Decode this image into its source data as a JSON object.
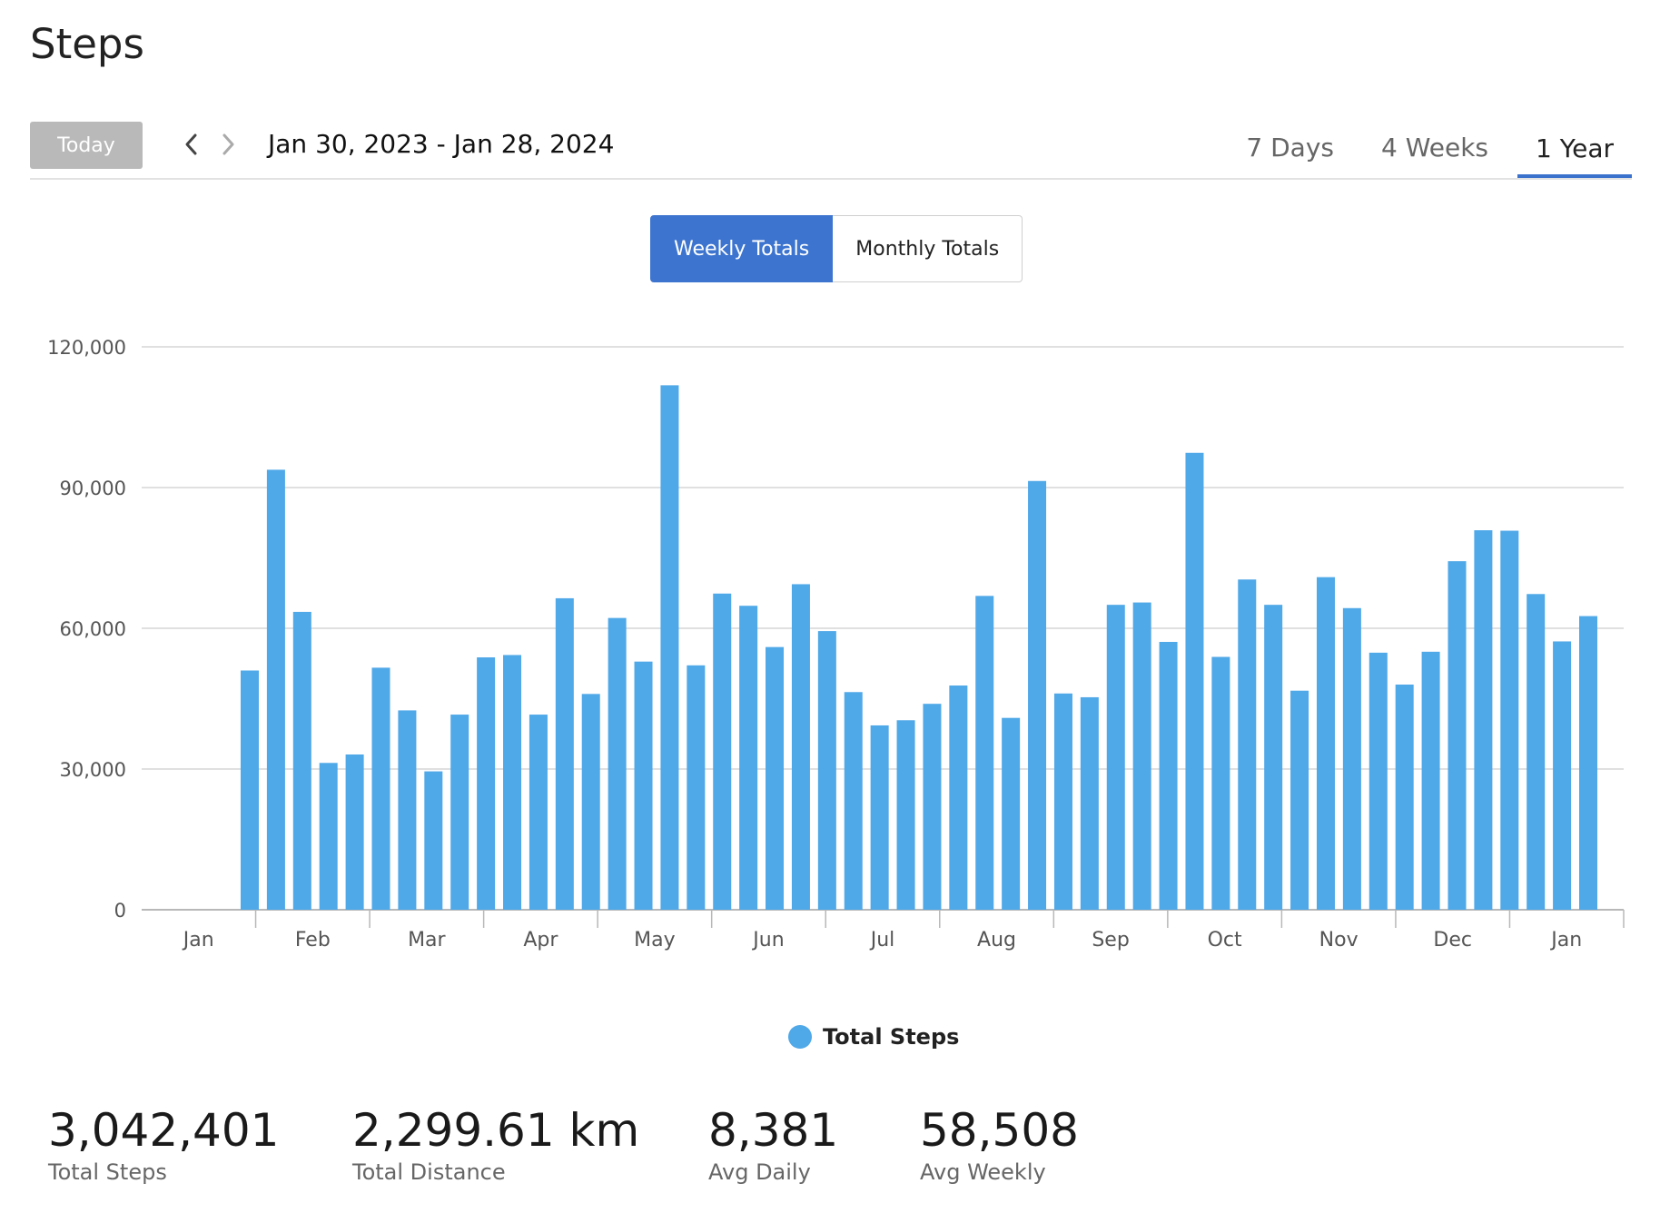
{
  "page": {
    "title": "Steps"
  },
  "toolbar": {
    "today_label": "Today",
    "date_range": "Jan 30, 2023 - Jan 28, 2024",
    "range_tabs": [
      "7 Days",
      "4 Weeks",
      "1 Year"
    ],
    "active_range": "1 Year"
  },
  "toggle": {
    "weekly": "Weekly Totals",
    "monthly": "Monthly Totals",
    "active": "Weekly Totals"
  },
  "colors": {
    "bar": "#4fa8e8",
    "accent": "#3c74cf",
    "today_button": "#b9b9b9"
  },
  "chart_data": {
    "type": "bar",
    "ylim": [
      0,
      120000
    ],
    "y_ticks": [
      "0",
      "30,000",
      "60,000",
      "90,000",
      "120,000"
    ],
    "x_tick_labels": [
      "Jan",
      "Feb",
      "Mar",
      "Apr",
      "May",
      "Jun",
      "Jul",
      "Aug",
      "Sep",
      "Oct",
      "Nov",
      "Dec",
      "Jan"
    ],
    "grid": true,
    "legend_position": "bottom-center",
    "series": [
      {
        "name": "Total Steps",
        "values": [
          51000,
          93800,
          63500,
          31300,
          33100,
          51600,
          42500,
          29500,
          41600,
          53800,
          54300,
          41600,
          66400,
          46000,
          62200,
          52900,
          111800,
          52100,
          67400,
          64800,
          56000,
          69400,
          59400,
          46400,
          39300,
          40400,
          43900,
          47800,
          66900,
          40900,
          91400,
          46100,
          45300,
          65000,
          65500,
          57100,
          97400,
          53900,
          70400,
          65000,
          46700,
          70900,
          64300,
          54800,
          48000,
          55000,
          74300,
          80900,
          80800,
          67300,
          57200,
          62600
        ]
      }
    ]
  },
  "stats": [
    {
      "value": "3,042,401",
      "label": "Total Steps"
    },
    {
      "value": "2,299.61 km",
      "label": "Total Distance"
    },
    {
      "value": "8,381",
      "label": "Avg Daily"
    },
    {
      "value": "58,508",
      "label": "Avg Weekly"
    }
  ]
}
